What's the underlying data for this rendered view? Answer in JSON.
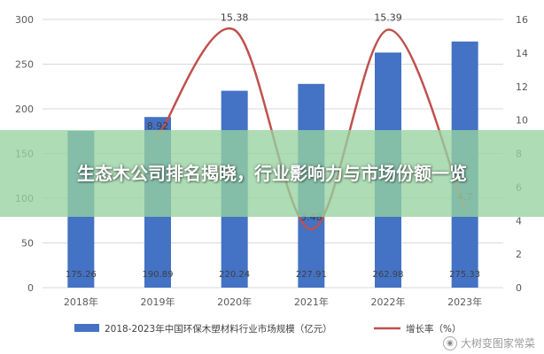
{
  "overlay": {
    "title": "生态木公司排名揭晓，行业影响力与市场份额一览"
  },
  "watermark": {
    "text": "大树变图家常菜"
  },
  "chart_data": {
    "type": "bar",
    "categories": [
      "2018年",
      "2019年",
      "2020年",
      "2021年",
      "2022年",
      "2023年"
    ],
    "series": [
      {
        "name": "2018-2023年中国环保木塑材料行业市场规模（亿元）",
        "type": "bar",
        "axis": "left",
        "color": "#4472c4",
        "values": [
          175.26,
          190.89,
          220.24,
          227.91,
          262.98,
          275.33
        ],
        "labels": [
          "175.26",
          "190.89",
          "220.24",
          "227.91",
          "262.98",
          "275.33"
        ]
      },
      {
        "name": "增长率（%）",
        "type": "line",
        "axis": "right",
        "color": "#c0504d",
        "values": [
          null,
          8.92,
          15.38,
          3.48,
          15.39,
          4.7
        ],
        "labels": [
          "",
          "8.92",
          "15.38",
          "3.48",
          "15.39",
          "4.7"
        ]
      }
    ],
    "y_left": {
      "ylim": [
        0,
        300
      ],
      "ticks": [
        "0",
        "50",
        "100",
        "150",
        "200",
        "250",
        "300"
      ]
    },
    "y_right": {
      "ylim": [
        0,
        16
      ],
      "ticks": [
        "0",
        "2",
        "4",
        "6",
        "8",
        "10",
        "12",
        "14",
        "16"
      ]
    },
    "grid": true,
    "legend_position": "bottom"
  }
}
